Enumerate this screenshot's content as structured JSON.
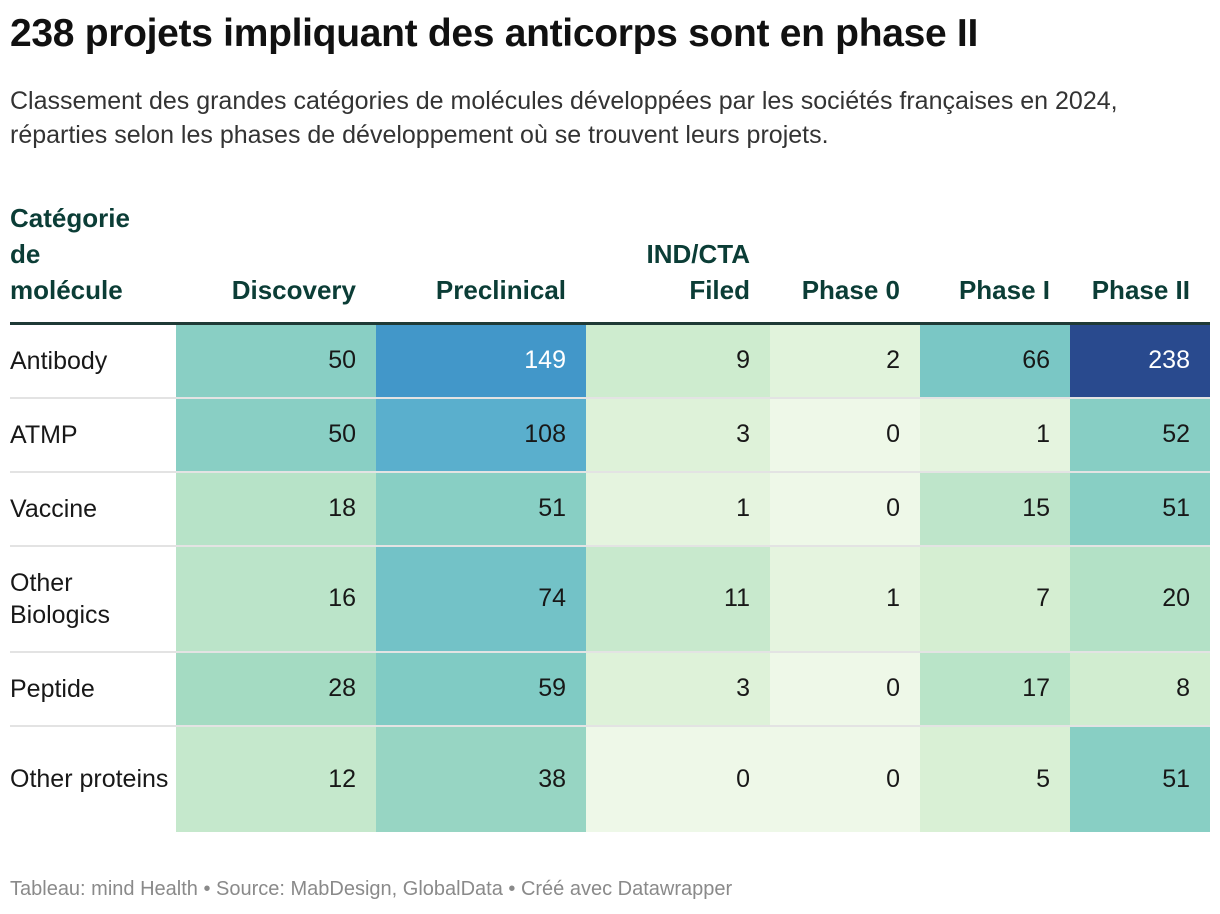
{
  "title": "238 projets impliquant des anticorps sont en phase II",
  "subtitle": "Classement des grandes catégories de molécules développées par les sociétés françaises en 2024, réparties selon les phases de développement où se trouvent leurs projets.",
  "footer": "Tableau: mind Health • Source: MabDesign, GlobalData • Créé avec Datawrapper",
  "chart_data": {
    "type": "heatmap",
    "row_header": "Catégorie de molécule",
    "columns": [
      "Discovery",
      "Preclinical",
      "IND/CTA Filed",
      "Phase 0",
      "Phase I",
      "Phase II"
    ],
    "rows": [
      "Antibody",
      "ATMP",
      "Vaccine",
      "Other Biologics",
      "Peptide",
      "Other proteins"
    ],
    "values": [
      [
        50,
        149,
        9,
        2,
        66,
        238
      ],
      [
        50,
        108,
        3,
        0,
        1,
        52
      ],
      [
        18,
        51,
        1,
        0,
        15,
        51
      ],
      [
        16,
        74,
        11,
        1,
        7,
        20
      ],
      [
        28,
        59,
        3,
        0,
        17,
        8
      ],
      [
        12,
        38,
        0,
        0,
        5,
        51
      ]
    ],
    "color_scale": [
      "#eef8e8",
      "#d6efd2",
      "#a6dcc2",
      "#80cbc4",
      "#5bb0cd",
      "#3a8fc7",
      "#294a8e"
    ],
    "light_text_color": "#ffffff",
    "dark_text_color": "#181818"
  }
}
